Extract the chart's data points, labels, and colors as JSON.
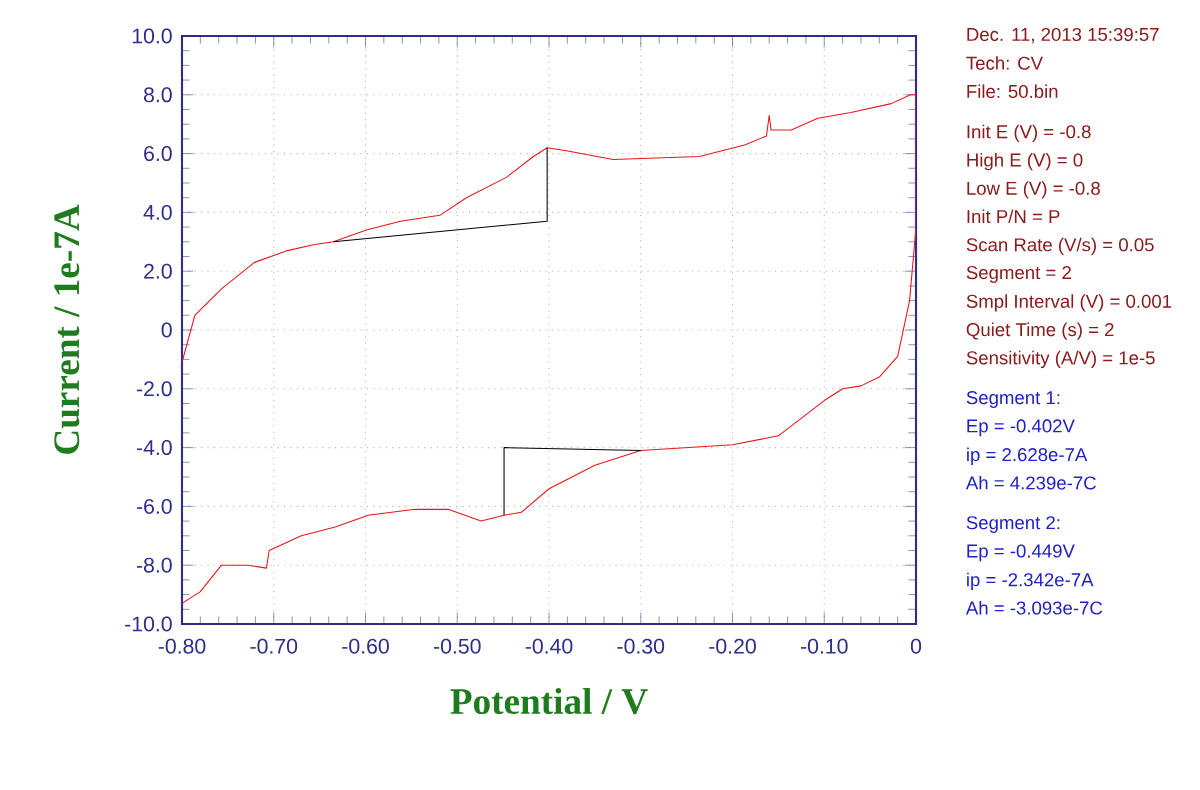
{
  "chart_data": {
    "type": "line",
    "xlabel": "Potential / V",
    "ylabel": "Current / 1e-7A",
    "xlim": [
      -0.8,
      0
    ],
    "ylim": [
      -10,
      10
    ],
    "xticks": [
      {
        "value": -0.8,
        "label": "-0.80"
      },
      {
        "value": -0.7,
        "label": "-0.70"
      },
      {
        "value": -0.6,
        "label": "-0.60"
      },
      {
        "value": -0.5,
        "label": "-0.50"
      },
      {
        "value": -0.4,
        "label": "-0.40"
      },
      {
        "value": -0.3,
        "label": "-0.30"
      },
      {
        "value": -0.2,
        "label": "-0.20"
      },
      {
        "value": -0.1,
        "label": "-0.10"
      },
      0
    ],
    "yticks": [
      {
        "value": -10,
        "label": "-10.0"
      },
      {
        "value": -8,
        "label": "-8.0"
      },
      {
        "value": -6,
        "label": "-6.0"
      },
      {
        "value": -4,
        "label": "-4.0"
      },
      {
        "value": -2,
        "label": "-2.0"
      },
      0,
      {
        "value": 2,
        "label": "2.0"
      },
      {
        "value": 4,
        "label": "4.0"
      },
      {
        "value": 6,
        "label": "6.0"
      },
      {
        "value": 8,
        "label": "8.0"
      },
      {
        "value": 10,
        "label": "10.0"
      }
    ],
    "grid": true,
    "marker": "none",
    "line_style": "solid",
    "series": [
      {
        "color": "#e8161b",
        "x": [
          -0.8,
          -0.786,
          -0.757,
          -0.721,
          -0.685,
          -0.657,
          -0.635,
          -0.599,
          -0.562,
          -0.519,
          -0.49,
          -0.446,
          -0.417,
          -0.402,
          -0.381,
          -0.33,
          -0.236,
          -0.186,
          -0.163,
          -0.16,
          -0.158,
          -0.136,
          -0.107,
          -0.071,
          -0.027,
          -0.006,
          0,
          0,
          -0.007,
          -0.02,
          -0.04,
          -0.06,
          -0.08,
          -0.1,
          -0.15,
          -0.2,
          -0.3,
          -0.35,
          -0.4,
          -0.43,
          -0.449,
          -0.474,
          -0.51,
          -0.546,
          -0.597,
          -0.633,
          -0.67,
          -0.705,
          -0.708,
          -0.728,
          -0.757,
          -0.78,
          -0.8
        ],
        "values": [
          -1.1,
          0.5,
          1.4,
          2.3,
          2.7,
          2.9,
          3.0,
          3.4,
          3.7,
          3.9,
          4.5,
          5.2,
          5.9,
          6.2,
          6.1,
          5.8,
          5.9,
          6.3,
          6.6,
          7.3,
          6.8,
          6.8,
          7.2,
          7.4,
          7.7,
          8.0,
          8.0,
          3.5,
          1.0,
          -0.9,
          -1.6,
          -1.9,
          -2.0,
          -2.4,
          -3.6,
          -3.9,
          -4.1,
          -4.6,
          -5.4,
          -6.2,
          -6.3,
          -6.5,
          -6.1,
          -6.1,
          -6.3,
          -6.7,
          -7.0,
          -7.5,
          -8.1,
          -8.0,
          -8.0,
          -8.9,
          -9.3
        ]
      },
      {
        "color": "#000000",
        "x": [
          -0.635,
          -0.402,
          -0.402
        ],
        "values": [
          3.0,
          3.7,
          6.2
        ]
      },
      {
        "color": "#000000",
        "x": [
          -0.3,
          -0.449,
          -0.449
        ],
        "values": [
          -4.1,
          -4.0,
          -6.3
        ]
      }
    ],
    "annotations": [
      "Dec. 11, 2013   15:39:57",
      "Tech: CV",
      "File: 50.bin",
      "Init E (V) = -0.8",
      "High E (V) = 0",
      "Low E (V) = -0.8",
      "Init P/N = P",
      "Scan Rate (V/s) = 0.05",
      "Segment = 2",
      "Smpl Interval (V) = 0.001",
      "Quiet Time (s) = 2",
      "Sensitivity (A/V) = 1e-5",
      "Segment 1:",
      "Ep = -0.402V",
      "ip = 2.628e-7A",
      "Ah = 4.239e-7C",
      "Segment 2:",
      "Ep = -0.449V",
      "ip = -2.342e-7A",
      "Ah = -3.093e-7C"
    ]
  }
}
